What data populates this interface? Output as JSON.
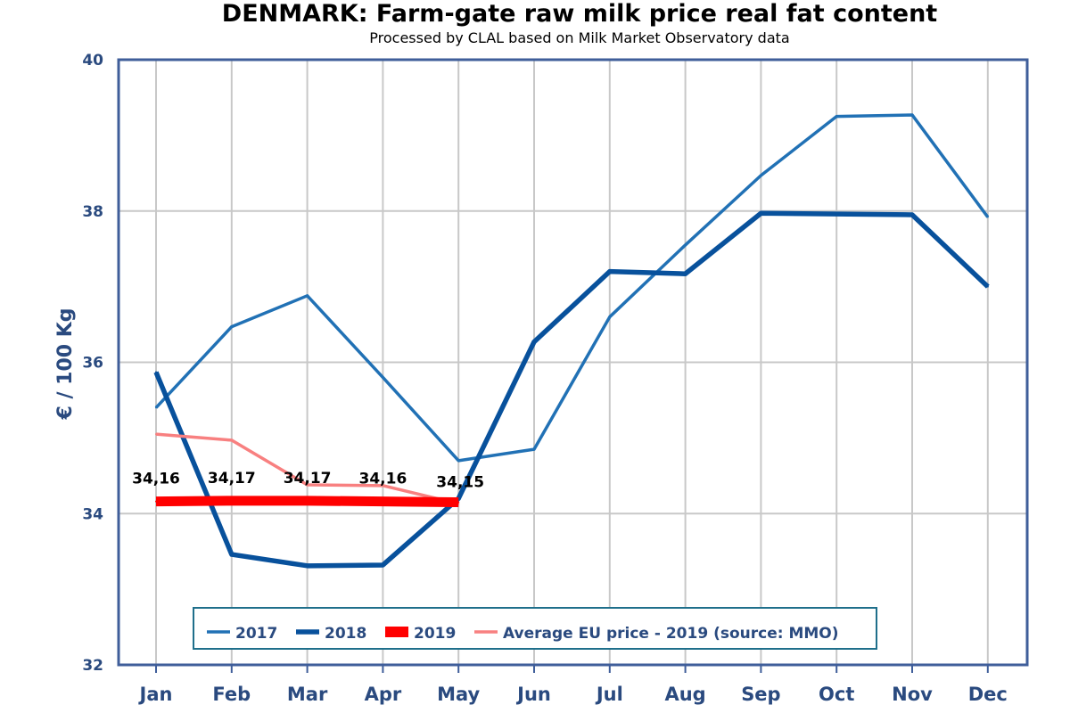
{
  "chart_data": {
    "type": "line",
    "title": "DENMARK: Farm-gate raw milk price real fat content",
    "subtitle": "Processed by CLAL based on Milk Market Observatory data",
    "ylabel": "€ / 100 Kg",
    "xlabel": "",
    "ylim": [
      32,
      40
    ],
    "yticks": [
      "32",
      "34",
      "36",
      "38",
      "40"
    ],
    "ytick_values": [
      32,
      34,
      36,
      38,
      40
    ],
    "grid": true,
    "legend_position": "bottom-center",
    "categories": [
      "Jan",
      "Feb",
      "Mar",
      "Apr",
      "May",
      "Jun",
      "Jul",
      "Aug",
      "Sep",
      "Oct",
      "Nov",
      "Dec"
    ],
    "series": [
      {
        "name": "2017",
        "color": "#2171b5",
        "style": "normal",
        "values": [
          35.4,
          36.47,
          36.88,
          35.8,
          34.7,
          34.85,
          36.6,
          37.55,
          38.47,
          39.25,
          39.27,
          37.92
        ]
      },
      {
        "name": "2018",
        "color": "#08519c",
        "style": "thick",
        "values": [
          35.87,
          33.46,
          33.31,
          33.32,
          34.2,
          36.27,
          37.2,
          37.17,
          37.97,
          37.96,
          37.95,
          37.0
        ]
      },
      {
        "name": "2019",
        "color": "#ff0000",
        "style": "bold",
        "values": [
          34.16,
          34.17,
          34.17,
          34.16,
          34.15,
          null,
          null,
          null,
          null,
          null,
          null,
          null
        ]
      },
      {
        "name": "Average EU price - 2019 (source: MMO)",
        "color": "#f88080",
        "style": "normal",
        "values": [
          35.05,
          34.97,
          34.38,
          34.37,
          34.13,
          null,
          null,
          null,
          null,
          null,
          null,
          null
        ]
      }
    ],
    "data_labels": [
      {
        "category": "Jan",
        "text": "34,16"
      },
      {
        "category": "Feb",
        "text": "34,17"
      },
      {
        "category": "Mar",
        "text": "34,17"
      },
      {
        "category": "Apr",
        "text": "34,16"
      },
      {
        "category": "May",
        "text": "34,15"
      }
    ]
  }
}
